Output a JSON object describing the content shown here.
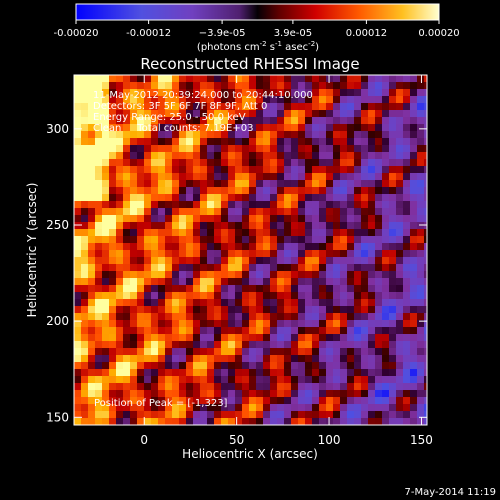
{
  "chart_data": {
    "type": "heatmap",
    "title": "Reconstructed RHESSI Image",
    "xlabel": "Heliocentric X (arcsec)",
    "ylabel": "Heliocentric Y (arcsec)",
    "x_ticks": [
      {
        "value": 0,
        "label": "0"
      },
      {
        "value": 50,
        "label": "50"
      },
      {
        "value": 100,
        "label": "100"
      },
      {
        "value": 150,
        "label": "150"
      }
    ],
    "y_ticks": [
      {
        "value": 150,
        "label": "150"
      },
      {
        "value": 200,
        "label": "200"
      },
      {
        "value": 250,
        "label": "250"
      },
      {
        "value": 300,
        "label": "300"
      }
    ],
    "xlim": [
      -38,
      153
    ],
    "ylim": [
      146,
      328
    ],
    "colorbar": {
      "range": [
        -0.0002,
        0.0002
      ],
      "ticks": [
        {
          "value": -0.0002,
          "label": "-0.00020"
        },
        {
          "value": -0.00012,
          "label": "-0.00012"
        },
        {
          "value": -3.9e-05,
          "label": "−3.9e-05"
        },
        {
          "value": 3.9e-05,
          "label": "3.9e-05"
        },
        {
          "value": 0.00012,
          "label": "0.00012"
        },
        {
          "value": 0.0002,
          "label": "0.00020"
        }
      ],
      "units_base": "(photons cm",
      "units_exp1": "-2",
      "units_mid": " s",
      "units_exp2": "-1",
      "units_mid2": " asec",
      "units_exp3": "-2",
      "units_end": ")"
    },
    "annotations": [
      "11-May-2012 20:39:24.000 to 20:44:10.000",
      "Detectors: 3F 5F 6F 7F 8F 9F, Att 0",
      "Energy Range: 25.0 - 50.0 keV",
      "Clean     Total counts: 7.19E+03"
    ],
    "peak_label": "Position of Peak = [-1,323]",
    "colors": {
      "background": "#000000",
      "axes": "#ffffff",
      "scale_negative": [
        "#0000ff",
        "#5050e0",
        "#7040c0",
        "#8030a0",
        "#300030"
      ],
      "scale_positive": [
        "#300000",
        "#c00000",
        "#ff5000",
        "#ffb000",
        "#ffffa0"
      ]
    }
  },
  "footer": {
    "date_label": "7-May-2014 11:19"
  }
}
